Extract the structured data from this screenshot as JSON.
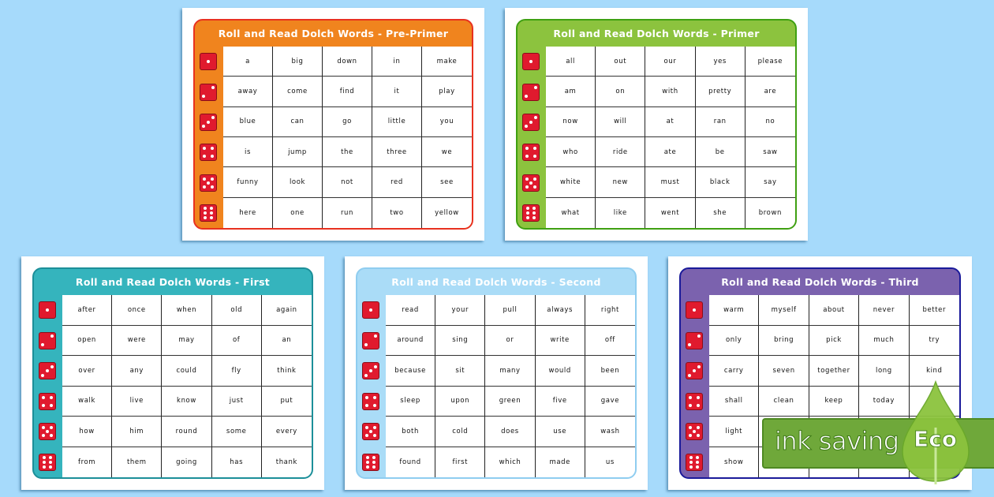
{
  "background_color": "#a6dafb",
  "dice_color": "#e01a2e",
  "sheets": [
    {
      "title": "Roll and Read Dolch Words - Pre-Primer",
      "level": "Pre-Primer",
      "header_color": "#f0841e",
      "border_color": "#e8311f",
      "rows": [
        [
          "a",
          "big",
          "down",
          "in",
          "make"
        ],
        [
          "away",
          "come",
          "find",
          "it",
          "play"
        ],
        [
          "blue",
          "can",
          "go",
          "little",
          "you"
        ],
        [
          "is",
          "jump",
          "the",
          "three",
          "we"
        ],
        [
          "funny",
          "look",
          "not",
          "red",
          "see"
        ],
        [
          "here",
          "one",
          "run",
          "two",
          "yellow"
        ]
      ]
    },
    {
      "title": "Roll and Read Dolch Words - Primer",
      "level": "Primer",
      "header_color": "#8cc33e",
      "border_color": "#3fa012",
      "rows": [
        [
          "all",
          "out",
          "our",
          "yes",
          "please"
        ],
        [
          "am",
          "on",
          "with",
          "pretty",
          "are"
        ],
        [
          "now",
          "will",
          "at",
          "ran",
          "no"
        ],
        [
          "who",
          "ride",
          "ate",
          "be",
          "saw"
        ],
        [
          "white",
          "new",
          "must",
          "black",
          "say"
        ],
        [
          "what",
          "like",
          "went",
          "she",
          "brown"
        ]
      ]
    },
    {
      "title": "Roll and Read Dolch Words - First",
      "level": "First",
      "header_color": "#35b4bd",
      "border_color": "#1c8f99",
      "rows": [
        [
          "after",
          "once",
          "when",
          "old",
          "again"
        ],
        [
          "open",
          "were",
          "may",
          "of",
          "an"
        ],
        [
          "over",
          "any",
          "could",
          "fly",
          "think"
        ],
        [
          "walk",
          "live",
          "know",
          "just",
          "put"
        ],
        [
          "how",
          "him",
          "round",
          "some",
          "every"
        ],
        [
          "from",
          "them",
          "going",
          "has",
          "thank"
        ]
      ]
    },
    {
      "title": "Roll and Read Dolch Words - Second",
      "level": "Second",
      "header_color": "#aadcf7",
      "border_color": "#8fcdf0",
      "rows": [
        [
          "read",
          "your",
          "pull",
          "always",
          "right"
        ],
        [
          "around",
          "sing",
          "or",
          "write",
          "off"
        ],
        [
          "because",
          "sit",
          "many",
          "would",
          "been"
        ],
        [
          "sleep",
          "upon",
          "green",
          "five",
          "gave"
        ],
        [
          "both",
          "cold",
          "does",
          "use",
          "wash"
        ],
        [
          "found",
          "first",
          "which",
          "made",
          "us"
        ]
      ]
    },
    {
      "title": "Roll and Read Dolch Words - Third",
      "level": "Third",
      "header_color": "#7b62ae",
      "border_color": "#1a1a9a",
      "rows": [
        [
          "warm",
          "myself",
          "about",
          "never",
          "better"
        ],
        [
          "only",
          "bring",
          "pick",
          "much",
          "try"
        ],
        [
          "carry",
          "seven",
          "together",
          "long",
          "kind"
        ],
        [
          "shall",
          "clean",
          "keep",
          "today",
          ""
        ],
        [
          "light",
          "",
          "",
          "",
          ""
        ],
        [
          "show",
          "",
          "",
          "",
          ""
        ]
      ]
    }
  ],
  "eco_badge": {
    "text": "ink saving",
    "label": "Eco",
    "color": "#6fa83a"
  }
}
